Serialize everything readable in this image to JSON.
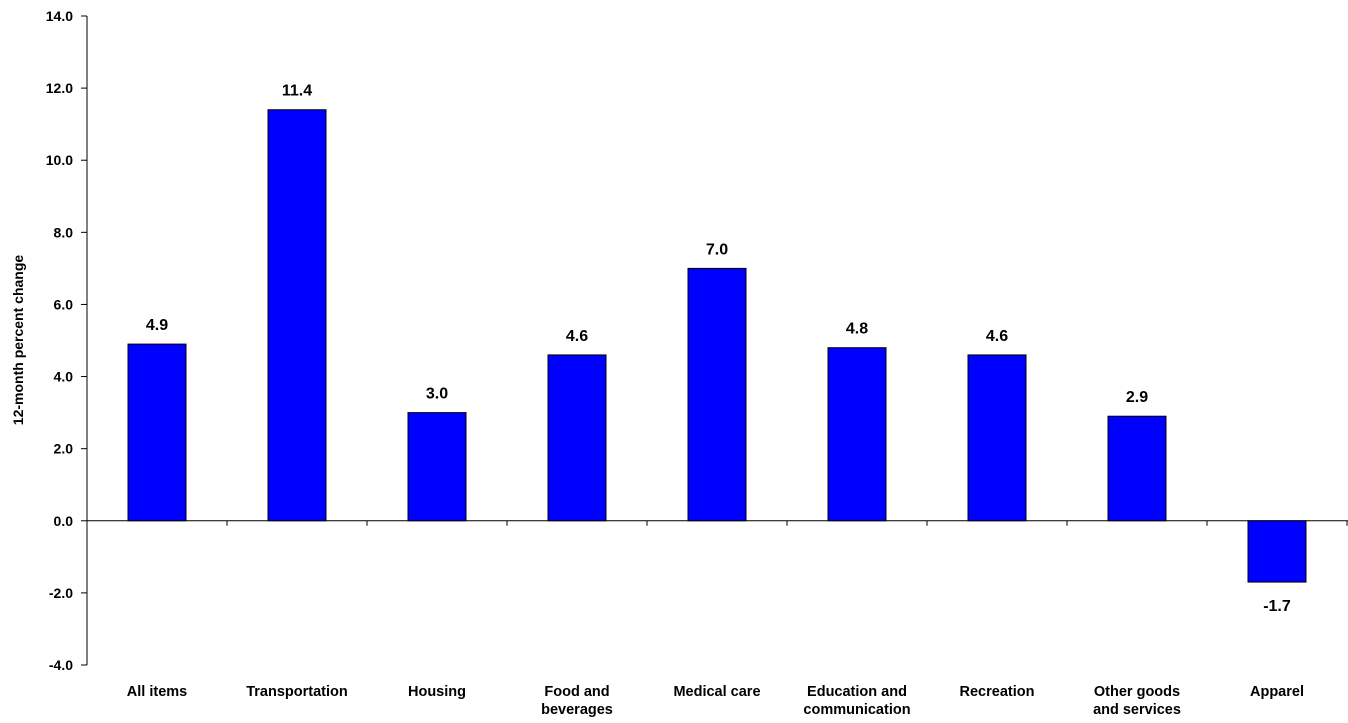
{
  "chart_data": {
    "type": "bar",
    "title": "",
    "xlabel": "",
    "ylabel": "12-month percent change",
    "categories": [
      [
        "All items"
      ],
      [
        "Transportation"
      ],
      [
        "Housing"
      ],
      [
        "Food and",
        "beverages"
      ],
      [
        "Medical care"
      ],
      [
        "Education and",
        "communication"
      ],
      [
        "Recreation"
      ],
      [
        "Other goods",
        "and services"
      ],
      [
        "Apparel"
      ]
    ],
    "values": [
      4.9,
      11.4,
      3.0,
      4.6,
      7.0,
      4.8,
      4.6,
      2.9,
      -1.7
    ],
    "value_labels": [
      "4.9",
      "11.4",
      "3.0",
      "4.6",
      "7.0",
      "4.8",
      "4.6",
      "2.9",
      "-1.7"
    ],
    "ylim": [
      -4.0,
      14.0
    ],
    "yticks": [
      -4.0,
      -2.0,
      0.0,
      2.0,
      4.0,
      6.0,
      8.0,
      10.0,
      12.0,
      14.0
    ],
    "ytick_labels": [
      "-4.0",
      "-2.0",
      "0.0",
      "2.0",
      "4.0",
      "6.0",
      "8.0",
      "10.0",
      "12.0",
      "14.0"
    ],
    "grid": false,
    "legend": "none",
    "bar_color": "#0000FF",
    "bar_edge_color": "#000000"
  }
}
